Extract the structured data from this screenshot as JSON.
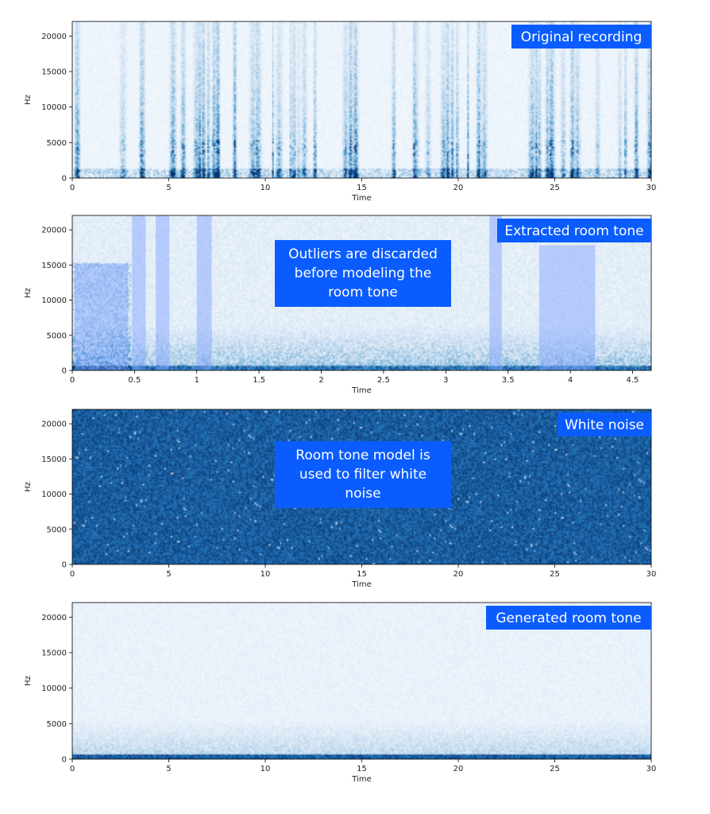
{
  "colors": {
    "badge": "#0a5cff",
    "spectrogram_dark": "#08519c",
    "spectrogram_light": "#f7fbff",
    "outlier_band": "#7da0ff"
  },
  "chart_data": [
    {
      "type": "heatmap",
      "badge": "Original recording",
      "xlabel": "Time",
      "ylabel": "Hz",
      "xlim": [
        0,
        30
      ],
      "ylim": [
        0,
        22050
      ],
      "x_ticks": [
        0,
        5,
        10,
        15,
        20,
        25,
        30
      ],
      "x_tick_labels": [
        "0",
        "5",
        "10",
        "15",
        "20",
        "25",
        "30"
      ],
      "y_ticks": [
        0,
        5000,
        10000,
        15000,
        20000
      ],
      "y_tick_labels": [
        "0",
        "5000",
        "10000",
        "15000",
        "20000"
      ],
      "pattern": "speech",
      "annotation_lines": [],
      "outlier_regions": []
    },
    {
      "type": "heatmap",
      "badge": "Extracted room tone",
      "xlabel": "Time",
      "ylabel": "Hz",
      "xlim": [
        0,
        4.65
      ],
      "ylim": [
        0,
        22050
      ],
      "x_ticks": [
        0,
        0.5,
        1,
        1.5,
        2,
        2.5,
        3,
        3.5,
        4,
        4.5
      ],
      "x_tick_labels": [
        "0",
        "0.5",
        "1",
        "1.5",
        "2",
        "2.5",
        "3",
        "3.5",
        "4",
        "4.5"
      ],
      "y_ticks": [
        0,
        5000,
        10000,
        15000,
        20000
      ],
      "y_tick_labels": [
        "0",
        "5000",
        "10000",
        "15000",
        "20000"
      ],
      "pattern": "roomtone",
      "annotation_lines": [
        "Outliers are discarded",
        "before modeling the",
        "room tone"
      ],
      "outlier_regions": [
        {
          "t0": 0.02,
          "t1": 0.45,
          "f_top": 15200
        },
        {
          "t0": 0.48,
          "t1": 0.59,
          "f_top": 22050
        },
        {
          "t0": 0.67,
          "t1": 0.78,
          "f_top": 22050
        },
        {
          "t0": 1.0,
          "t1": 1.12,
          "f_top": 22050
        },
        {
          "t0": 3.35,
          "t1": 3.45,
          "f_top": 22050
        },
        {
          "t0": 3.75,
          "t1": 4.2,
          "f_top": 17800
        }
      ]
    },
    {
      "type": "heatmap",
      "badge": "White noise",
      "xlabel": "Time",
      "ylabel": "Hz",
      "xlim": [
        0,
        30
      ],
      "ylim": [
        0,
        22050
      ],
      "x_ticks": [
        0,
        5,
        10,
        15,
        20,
        25,
        30
      ],
      "x_tick_labels": [
        "0",
        "5",
        "10",
        "15",
        "20",
        "25",
        "30"
      ],
      "y_ticks": [
        0,
        5000,
        10000,
        15000,
        20000
      ],
      "y_tick_labels": [
        "0",
        "5000",
        "10000",
        "15000",
        "20000"
      ],
      "pattern": "white",
      "annotation_lines": [
        "Room tone model is",
        "used to filter white",
        "noise"
      ],
      "outlier_regions": []
    },
    {
      "type": "heatmap",
      "badge": "Generated room tone",
      "xlabel": "Time",
      "ylabel": "Hz",
      "xlim": [
        0,
        30
      ],
      "ylim": [
        0,
        22050
      ],
      "x_ticks": [
        0,
        5,
        10,
        15,
        20,
        25,
        30
      ],
      "x_tick_labels": [
        "0",
        "5",
        "10",
        "15",
        "20",
        "25",
        "30"
      ],
      "y_ticks": [
        0,
        5000,
        10000,
        15000,
        20000
      ],
      "y_tick_labels": [
        "0",
        "5000",
        "10000",
        "15000",
        "20000"
      ],
      "pattern": "generated",
      "annotation_lines": [],
      "outlier_regions": []
    }
  ]
}
